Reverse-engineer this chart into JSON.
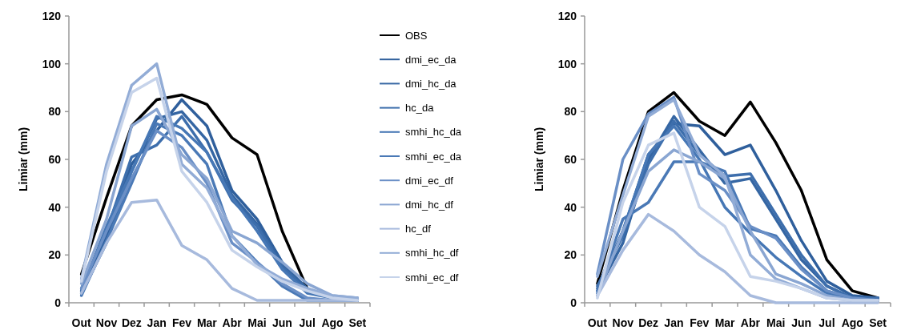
{
  "chart_data": [
    {
      "type": "line",
      "ylabel": "Limiar (mm)",
      "categories": [
        "Out",
        "Nov",
        "Dez",
        "Jan",
        "Fev",
        "Mar",
        "Abr",
        "Mai",
        "Jun",
        "Jul",
        "Ago",
        "Set"
      ],
      "ylim": [
        0,
        120
      ],
      "yticks": [
        0,
        20,
        40,
        60,
        80,
        100,
        120
      ],
      "grid": false,
      "legend": "right",
      "series": [
        {
          "name": "OBS",
          "color": "#000000",
          "values": [
            12,
            44,
            74,
            85,
            87,
            83,
            69,
            62,
            30,
            6,
            null,
            null
          ]
        },
        {
          "name": "dmi_ec_da",
          "color": "#2f5f9c",
          "values": [
            5,
            28,
            58,
            72,
            85,
            74,
            47,
            35,
            17,
            5,
            2,
            2
          ]
        },
        {
          "name": "dmi_hc_da",
          "color": "#3566a3",
          "values": [
            4,
            25,
            55,
            77,
            80,
            68,
            45,
            33,
            16,
            6,
            2,
            1
          ]
        },
        {
          "name": "hc_da",
          "color": "#3d6eac",
          "values": [
            6,
            30,
            61,
            66,
            78,
            63,
            43,
            32,
            15,
            5,
            2,
            1
          ]
        },
        {
          "name": "smhi_hc_da",
          "color": "#4677b5",
          "values": [
            5,
            32,
            55,
            78,
            73,
            63,
            44,
            30,
            14,
            4,
            2,
            1
          ]
        },
        {
          "name": "smhi_ec_da",
          "color": "#4a79b6",
          "values": [
            3,
            26,
            50,
            75,
            70,
            58,
            28,
            17,
            7,
            1,
            1,
            1
          ]
        },
        {
          "name": "dmi_ec_df",
          "color": "#6a8fc6",
          "values": [
            6,
            30,
            52,
            72,
            65,
            50,
            25,
            17,
            8,
            2,
            1,
            1
          ]
        },
        {
          "name": "dmi_hc_df",
          "color": "#8aa6d2",
          "values": [
            8,
            35,
            74,
            81,
            62,
            52,
            30,
            25,
            17,
            8,
            3,
            2
          ]
        },
        {
          "name": "hc_df",
          "color": "#a7badd",
          "values": [
            4,
            25,
            42,
            43,
            24,
            18,
            6,
            1,
            1,
            1,
            1,
            1
          ]
        },
        {
          "name": "smhi_hc_df",
          "color": "#92acd6",
          "values": [
            10,
            58,
            91,
            100,
            58,
            48,
            28,
            16,
            10,
            6,
            3,
            2
          ]
        },
        {
          "name": "smhi_ec_df",
          "color": "#c6d3ea",
          "values": [
            9,
            55,
            88,
            94,
            55,
            42,
            22,
            15,
            9,
            5,
            2,
            1
          ]
        }
      ]
    },
    {
      "type": "line",
      "ylabel": "Limiar (mm)",
      "categories": [
        "Out",
        "Nov",
        "Dez",
        "Jan",
        "Fev",
        "Mar",
        "Abr",
        "Mai",
        "Jun",
        "Jul",
        "Ago",
        "Set"
      ],
      "ylim": [
        0,
        120
      ],
      "yticks": [
        0,
        20,
        40,
        60,
        80,
        100,
        120
      ],
      "grid": false,
      "series": [
        {
          "color": "#000000",
          "values": [
            8,
            47,
            80,
            88,
            76,
            70,
            84,
            67,
            47,
            18,
            5,
            2
          ]
        },
        {
          "color": "#2f5f9c",
          "values": [
            6,
            30,
            62,
            75,
            74,
            62,
            66,
            47,
            26,
            9,
            3,
            2
          ]
        },
        {
          "color": "#3566a3",
          "values": [
            5,
            25,
            60,
            78,
            64,
            50,
            52,
            35,
            18,
            7,
            2,
            2
          ]
        },
        {
          "color": "#3d6eac",
          "values": [
            7,
            28,
            58,
            76,
            62,
            53,
            54,
            37,
            20,
            7,
            2,
            2
          ]
        },
        {
          "color": "#4677b5",
          "values": [
            4,
            30,
            62,
            74,
            60,
            40,
            29,
            19,
            11,
            4,
            2,
            1
          ]
        },
        {
          "color": "#4a79b6",
          "values": [
            5,
            35,
            42,
            59,
            59,
            55,
            31,
            28,
            15,
            5,
            2,
            1
          ]
        },
        {
          "color": "#6a8fc6",
          "values": [
            12,
            60,
            79,
            86,
            54,
            47,
            32,
            27,
            14,
            5,
            2,
            1
          ]
        },
        {
          "color": "#8aa6d2",
          "values": [
            3,
            30,
            55,
            64,
            59,
            52,
            30,
            12,
            8,
            3,
            1,
            1
          ]
        },
        {
          "color": "#a7badd",
          "values": [
            3,
            22,
            37,
            30,
            20,
            13,
            3,
            0,
            0,
            0,
            0,
            0
          ]
        },
        {
          "color": "#92acd6",
          "values": [
            11,
            45,
            78,
            85,
            62,
            53,
            20,
            10,
            6,
            2,
            1,
            1
          ]
        },
        {
          "color": "#c6d3ea",
          "values": [
            2,
            42,
            66,
            71,
            40,
            32,
            11,
            9,
            6,
            2,
            1,
            1
          ]
        }
      ]
    }
  ]
}
